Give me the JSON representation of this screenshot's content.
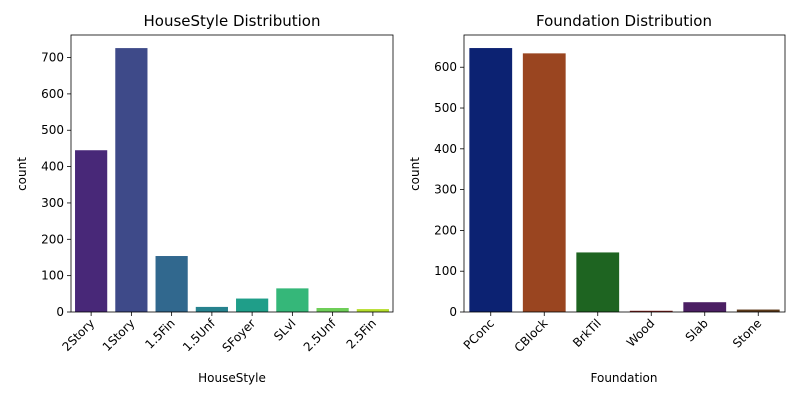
{
  "chart_data": [
    {
      "type": "bar",
      "title": "HouseStyle Distribution",
      "xlabel": "HouseStyle",
      "ylabel": "count",
      "categories": [
        "2Story",
        "1Story",
        "1.5Fin",
        "1.5Unf",
        "SFoyer",
        "SLvl",
        "2.5Unf",
        "2.5Fin"
      ],
      "values": [
        445,
        726,
        154,
        14,
        37,
        65,
        11,
        8
      ],
      "colors": [
        "#482878",
        "#3e4a89",
        "#31688e",
        "#26828e",
        "#1f9e89",
        "#35b779",
        "#6ece58",
        "#b5de2b"
      ],
      "ylim": [
        0,
        762
      ],
      "yticks": [
        0,
        100,
        200,
        300,
        400,
        500,
        600,
        700
      ],
      "grid": false
    },
    {
      "type": "bar",
      "title": "Foundation Distribution",
      "xlabel": "Foundation",
      "ylabel": "count",
      "categories": [
        "PConc",
        "CBlock",
        "BrkTil",
        "Wood",
        "Slab",
        "Stone"
      ],
      "values": [
        647,
        634,
        146,
        3,
        24,
        6
      ],
      "colors": [
        "#0c2272",
        "#9a4520",
        "#1e6421",
        "#7a1e1c",
        "#4b1f63",
        "#5c3a1a"
      ],
      "ylim": [
        0,
        679
      ],
      "yticks": [
        0,
        100,
        200,
        300,
        400,
        500,
        600
      ],
      "grid": false
    }
  ]
}
